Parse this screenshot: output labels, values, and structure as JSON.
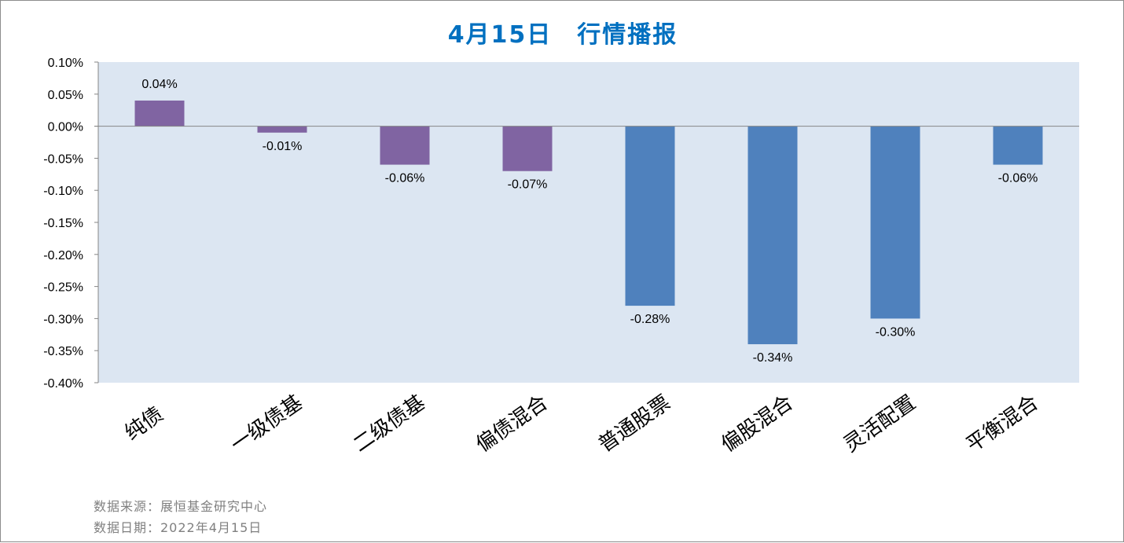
{
  "chart_data": {
    "type": "bar",
    "title": "4月15日　行情播报",
    "categories": [
      "纯债",
      "一级债基",
      "二级债基",
      "偏债混合",
      "普通股票",
      "偏股混合",
      "灵活配置",
      "平衡混合"
    ],
    "values": [
      0.04,
      -0.01,
      -0.06,
      -0.07,
      -0.28,
      -0.34,
      -0.3,
      -0.06
    ],
    "data_labels": [
      "0.04%",
      "-0.01%",
      "-0.06%",
      "-0.07%",
      "-0.28%",
      "-0.34%",
      "-0.30%",
      "-0.06%"
    ],
    "ylim": [
      -0.4,
      0.1
    ],
    "y_ticks": [
      "0.10%",
      "0.05%",
      "0.00%",
      "-0.05%",
      "-0.10%",
      "-0.15%",
      "-0.20%",
      "-0.25%",
      "-0.30%",
      "-0.35%",
      "-0.40%"
    ],
    "bar_colors": [
      "#8064a2",
      "#8064a2",
      "#8064a2",
      "#8064a2",
      "#4f81bd",
      "#4f81bd",
      "#4f81bd",
      "#4f81bd"
    ],
    "plot_background": "#dce6f2",
    "grid": false,
    "xlabel": "",
    "ylabel": ""
  },
  "colors": {
    "title": "#0070c0",
    "source_text": "#808080"
  },
  "footer": {
    "source": "数据来源：展恒基金研究中心",
    "date": "数据日期：2022年4月15日"
  }
}
